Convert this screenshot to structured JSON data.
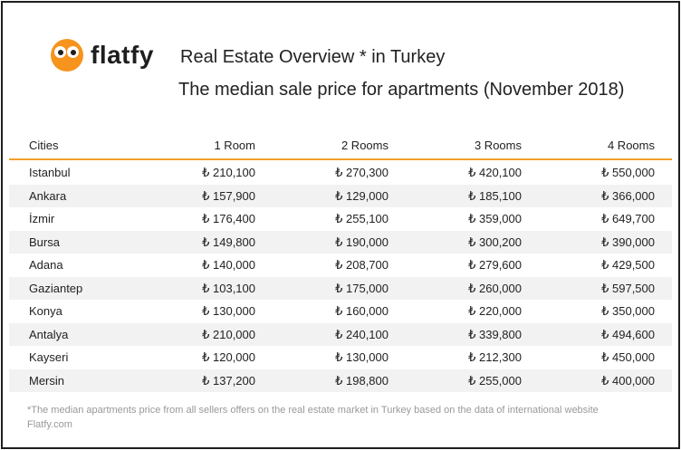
{
  "brand": {
    "name": "flatfy",
    "color": "#f7941d"
  },
  "header": {
    "title": "Real Estate Overview * in Turkey",
    "subtitle": "The median sale price for apartments (November 2018)"
  },
  "chart_data": {
    "type": "table",
    "columns": [
      "Cities",
      "1 Room",
      "2 Rooms",
      "3 Rooms",
      "4 Rooms"
    ],
    "currency": "₺",
    "rows": [
      [
        "Istanbul",
        "₺ 210,100",
        "₺ 270,300",
        "₺ 420,100",
        "₺ 550,000"
      ],
      [
        "Ankara",
        "₺ 157,900",
        "₺ 129,000",
        "₺ 185,100",
        "₺ 366,000"
      ],
      [
        "İzmir",
        "₺ 176,400",
        "₺ 255,100",
        "₺ 359,000",
        "₺ 649,700"
      ],
      [
        "Bursa",
        "₺ 149,800",
        "₺ 190,000",
        "₺ 300,200",
        "₺ 390,000"
      ],
      [
        "Adana",
        "₺ 140,000",
        "₺ 208,700",
        "₺ 279,600",
        "₺ 429,500"
      ],
      [
        "Gaziantep",
        "₺ 103,100",
        "₺ 175,000",
        "₺ 260,000",
        "₺ 597,500"
      ],
      [
        "Konya",
        "₺ 130,000",
        "₺ 160,000",
        "₺ 220,000",
        "₺ 350,000"
      ],
      [
        "Antalya",
        "₺ 210,000",
        "₺ 240,100",
        "₺ 339,800",
        "₺ 494,600"
      ],
      [
        "Kayseri",
        "₺ 120,000",
        "₺ 130,000",
        "₺ 212,300",
        "₺ 450,000"
      ],
      [
        "Mersin",
        "₺ 137,200",
        "₺ 198,800",
        "₺ 255,000",
        "₺ 400,000"
      ]
    ],
    "header_rule_color": "#f2a12e",
    "stripe_color": "#f2f2f2"
  },
  "footnote": "*The median apartments price from all sellers offers on the real estate market in Turkey based on the data of international website Flatfy.com"
}
